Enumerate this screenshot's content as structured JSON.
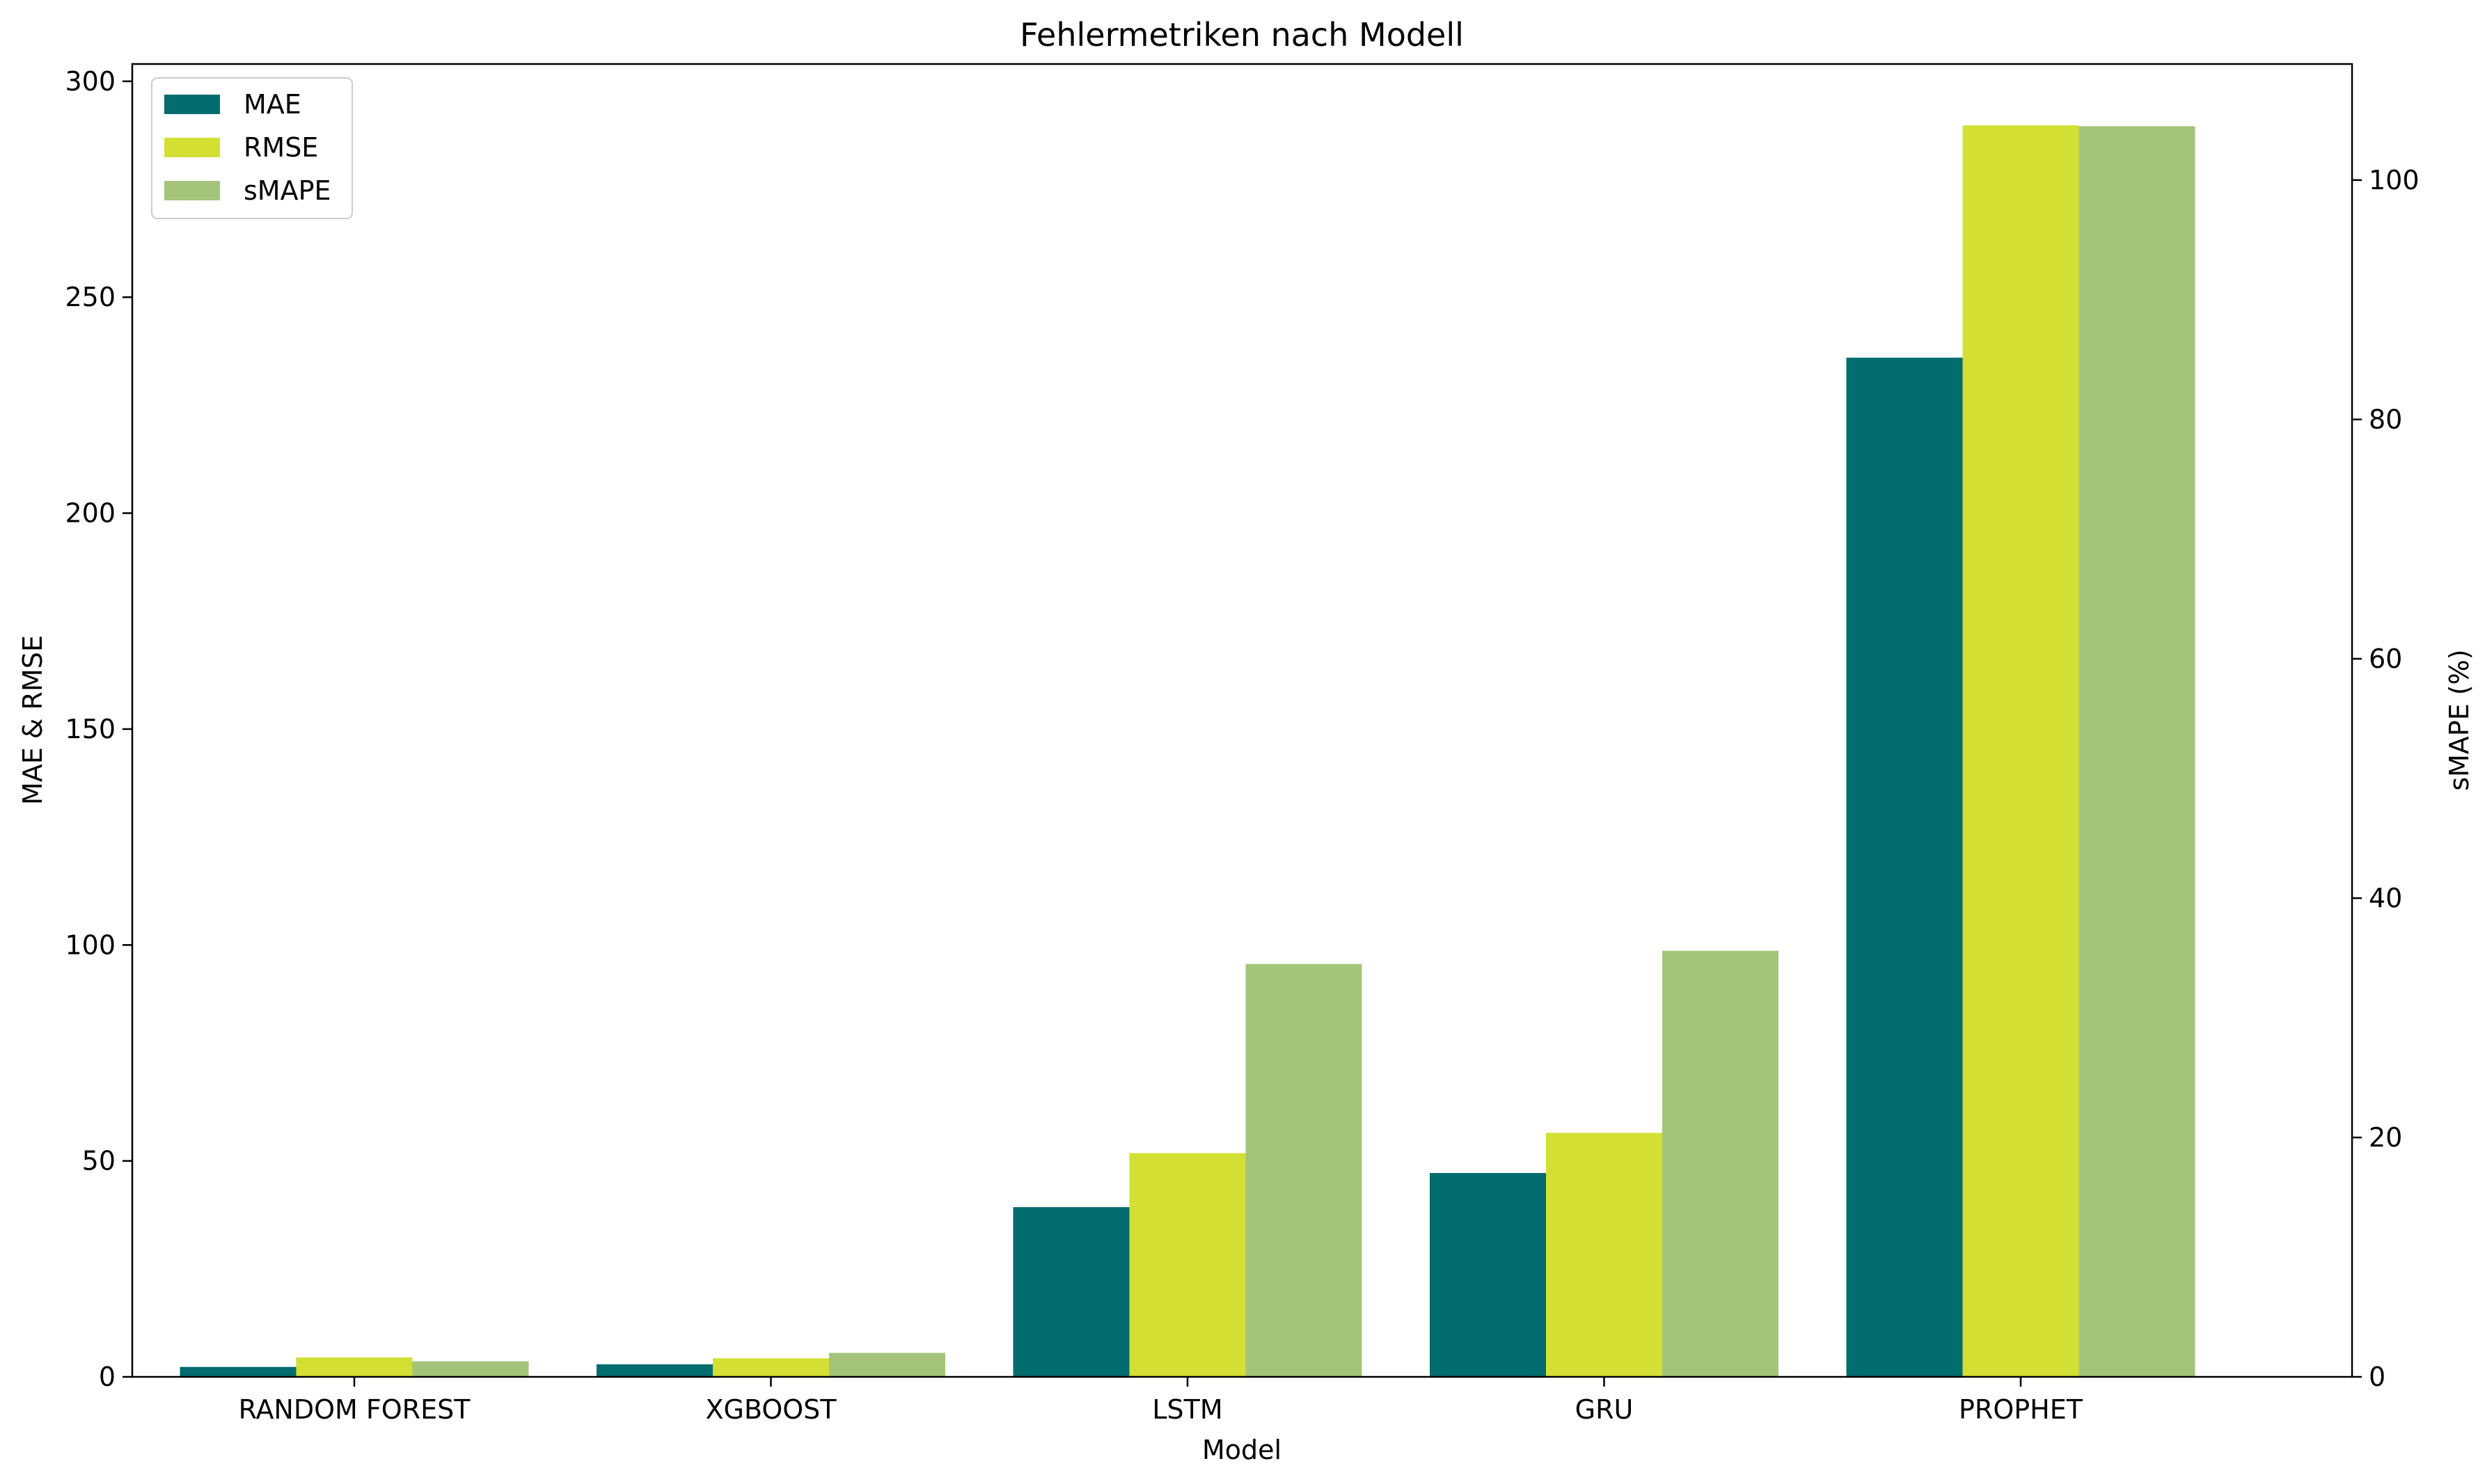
{
  "chart_data": {
    "type": "bar",
    "title": "Fehlermetriken nach Modell",
    "xlabel": "Model",
    "ylabel": "MAE & RMSE",
    "ylabel_right": "sMAPE (%)",
    "categories": [
      "RANDOM FOREST",
      "XGBOOST",
      "LSTM",
      "GRU",
      "PROPHET"
    ],
    "ylim": [
      0,
      304
    ],
    "ylim_right": [
      0,
      109.7
    ],
    "yticks": [
      0,
      50,
      100,
      150,
      200,
      250,
      300
    ],
    "yticks_right": [
      0,
      20,
      40,
      60,
      80,
      100
    ],
    "series": [
      {
        "name": "MAE",
        "axis": "left",
        "color": "#026c6e",
        "values": [
          2.3,
          2.9,
          39.3,
          47.2,
          236.0
        ]
      },
      {
        "name": "RMSE",
        "axis": "left",
        "color": "#d3df33",
        "values": [
          4.5,
          4.3,
          51.8,
          56.5,
          289.8
        ]
      },
      {
        "name": "sMAPE",
        "axis": "right",
        "color": "#a3c47a",
        "values": [
          1.3,
          2.0,
          34.5,
          35.6,
          104.5
        ]
      }
    ],
    "legend": {
      "position": "top-left"
    },
    "grid": false
  }
}
